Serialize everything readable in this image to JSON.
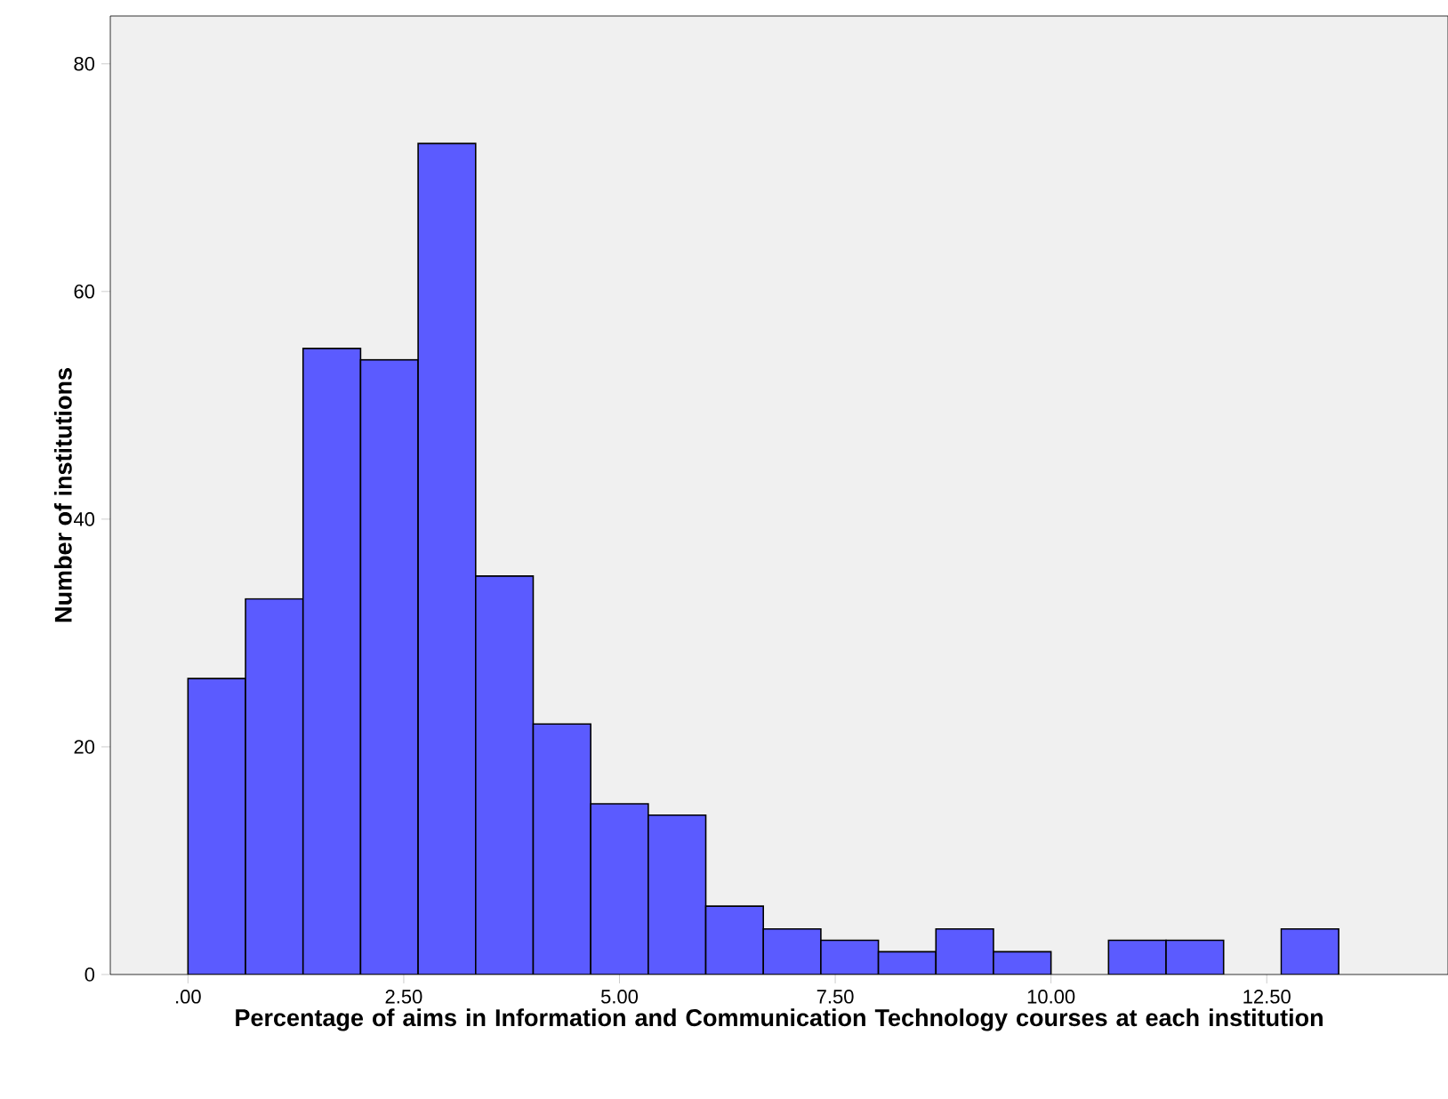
{
  "chart_data": {
    "type": "histogram",
    "xlabel": "Percentage of aims in Information and Communication Technology courses at each institution",
    "ylabel": "Number of institutions",
    "bins": [
      0,
      0.6667,
      1.3333,
      2,
      2.6667,
      3.3333,
      4,
      4.6667,
      5.3333,
      6,
      6.6667,
      7.3333,
      8,
      8.6667,
      9.3333,
      10,
      10.6667,
      11.3333,
      12,
      12.6667,
      13.3333
    ],
    "values": [
      26,
      33,
      55,
      54,
      73,
      35,
      22,
      15,
      14,
      6,
      4,
      3,
      2,
      4,
      2,
      0,
      3,
      3,
      0,
      4
    ],
    "color": "#5b5bff",
    "xlim": [
      -0.9,
      14.6
    ],
    "ylim": [
      0,
      84.2
    ],
    "xticks": [
      {
        "value": 0,
        "label": ".00"
      },
      {
        "value": 2.5,
        "label": "2.50"
      },
      {
        "value": 5,
        "label": "5.00"
      },
      {
        "value": 7.5,
        "label": "7.50"
      },
      {
        "value": 10,
        "label": "10.00"
      },
      {
        "value": 12.5,
        "label": "12.50"
      }
    ],
    "yticks": [
      0,
      20,
      40,
      60,
      80
    ],
    "grid": false
  }
}
